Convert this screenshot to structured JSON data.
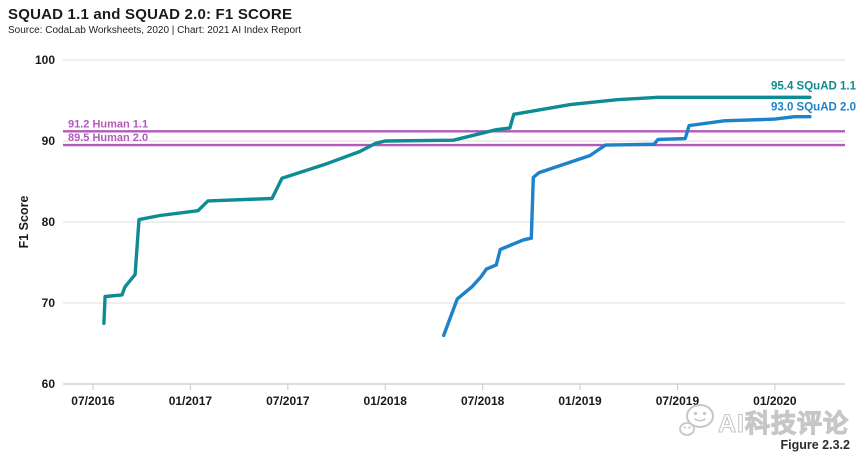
{
  "header": {
    "title": "SQUAD 1.1 and SQUAD 2.0: F1 SCORE",
    "source_line": "Source: CodaLab Worksheets, 2020 | Chart: 2021 AI Index Report"
  },
  "footer": {
    "figure_caption": "Figure 2.3.2",
    "watermark_text": "AI科技评论",
    "watermark_icon": "wechat-icon"
  },
  "chart_data": {
    "type": "line",
    "title": "SQUAD 1.1 and SQUAD 2.0: F1 SCORE",
    "xlabel": "",
    "ylabel": "F1 Score",
    "ylim": [
      60,
      100
    ],
    "yticks": [
      60,
      70,
      80,
      90,
      100
    ],
    "xlim": [
      2016.346,
      2020.36
    ],
    "xticks": {
      "values": [
        2016.5,
        2017.0,
        2017.5,
        2018.0,
        2018.5,
        2019.0,
        2019.5,
        2020.0
      ],
      "labels": [
        "07/2016",
        "01/2017",
        "07/2017",
        "01/2018",
        "07/2018",
        "01/2019",
        "07/2019",
        "01/2020"
      ]
    },
    "points_note": "x values are decimal years read from the time axis",
    "grid": "horizontal",
    "legend_position": "labels at line ends (top right) and above reference lines (top left)",
    "axis_colors": {
      "grid": "#dcdcdc",
      "axis_line": "#bdbdbd",
      "tick_label": "#1a1a1a"
    },
    "reference_lines": [
      {
        "name": "Human 1.1",
        "value": 91.2,
        "label": "91.2 Human 1.1",
        "color": "#B25AB9"
      },
      {
        "name": "Human 2.0",
        "value": 89.5,
        "label": "89.5 Human 2.0",
        "color": "#B25AB9"
      }
    ],
    "series": [
      {
        "name": "SQuAD 1.1",
        "end_label": "95.4 SQuAD 1.1",
        "final_value": 95.4,
        "color": "#0E8C94",
        "points": [
          [
            2016.556,
            67.5
          ],
          [
            2016.562,
            70.8
          ],
          [
            2016.649,
            71.0
          ],
          [
            2016.664,
            72.0
          ],
          [
            2016.716,
            73.5
          ],
          [
            2016.736,
            80.3
          ],
          [
            2016.844,
            80.8
          ],
          [
            2017.039,
            81.4
          ],
          [
            2017.09,
            82.6
          ],
          [
            2017.419,
            82.9
          ],
          [
            2017.47,
            85.4
          ],
          [
            2017.7,
            87.2
          ],
          [
            2017.87,
            88.7
          ],
          [
            2017.95,
            89.7
          ],
          [
            2018.0,
            90.0
          ],
          [
            2018.35,
            90.1
          ],
          [
            2018.57,
            91.4
          ],
          [
            2018.64,
            91.6
          ],
          [
            2018.66,
            93.3
          ],
          [
            2018.95,
            94.5
          ],
          [
            2019.19,
            95.1
          ],
          [
            2019.4,
            95.4
          ],
          [
            2020.18,
            95.4
          ]
        ]
      },
      {
        "name": "SQuAD 2.0",
        "end_label": "93.0 SQuAD 2.0",
        "final_value": 93.0,
        "color": "#1E82CB",
        "points": [
          [
            2018.3,
            66.0
          ],
          [
            2018.37,
            70.5
          ],
          [
            2018.445,
            72.0
          ],
          [
            2018.49,
            73.2
          ],
          [
            2018.52,
            74.2
          ],
          [
            2018.55,
            74.5
          ],
          [
            2018.57,
            74.7
          ],
          [
            2018.59,
            76.6
          ],
          [
            2018.71,
            77.8
          ],
          [
            2018.75,
            78.0
          ],
          [
            2018.76,
            85.5
          ],
          [
            2018.79,
            86.1
          ],
          [
            2019.05,
            88.2
          ],
          [
            2019.13,
            89.5
          ],
          [
            2019.38,
            89.6
          ],
          [
            2019.4,
            90.2
          ],
          [
            2019.54,
            90.3
          ],
          [
            2019.56,
            91.9
          ],
          [
            2019.62,
            92.1
          ],
          [
            2019.74,
            92.5
          ],
          [
            2020.0,
            92.7
          ],
          [
            2020.1,
            93.0
          ],
          [
            2020.18,
            93.0
          ]
        ]
      }
    ]
  }
}
